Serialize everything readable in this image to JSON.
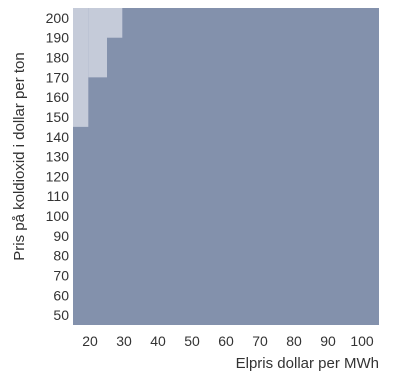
{
  "chart_data": {
    "type": "heatmap",
    "title": "",
    "xlabel": "Elpris dollar per MWh",
    "ylabel": "Pris på koldioxid i dollar per ton",
    "x_ticks": [
      20,
      30,
      40,
      50,
      60,
      70,
      80,
      90,
      100
    ],
    "y_ticks": [
      200,
      190,
      180,
      170,
      160,
      150,
      140,
      130,
      120,
      110,
      100,
      90,
      80,
      70,
      60,
      50
    ],
    "xlim": [
      15,
      105
    ],
    "ylim": [
      45,
      205
    ],
    "colors": {
      "dark_region": "#8391ac",
      "light_region": "#c5cbd9"
    },
    "light_region_boundary": [
      {
        "x_from": 15,
        "x_to": 19.5,
        "y_from": 145
      },
      {
        "x_from": 19.5,
        "x_to": 25,
        "y_from": 170
      },
      {
        "x_from": 25,
        "x_to": 29.5,
        "y_from": 190
      },
      {
        "x_from": 29.5,
        "x_to": 105,
        "y_from": 205
      }
    ]
  }
}
